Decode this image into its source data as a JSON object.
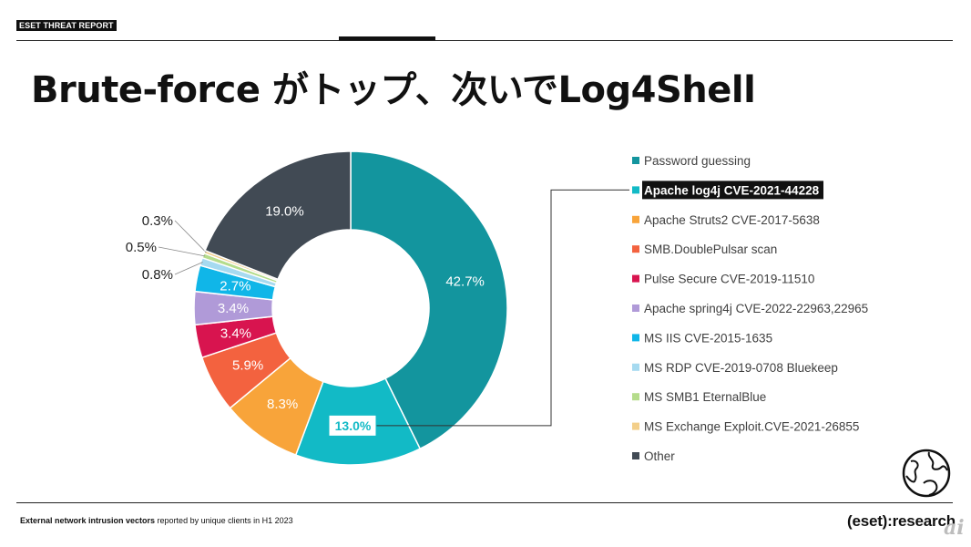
{
  "header": {
    "label": "ESET THREAT REPORT"
  },
  "title": "Brute-force がトップ、次いでLog4Shell",
  "footer": {
    "source_bold": "External network intrusion vectors",
    "source_rest": " reported by unique clients in H1 2023",
    "brand": "(eset):research",
    "watermark": "ai"
  },
  "chart_data": {
    "type": "pie",
    "donut": true,
    "legend_position": "right",
    "highlighted": "Apache log4j CVE-2021-44228",
    "series": [
      {
        "name": "Password guessing",
        "value": 42.7,
        "label": "42.7%",
        "color": "#13959e"
      },
      {
        "name": "Apache log4j CVE-2021-44228",
        "value": 13.0,
        "label": "13.0%",
        "color": "#12bac6"
      },
      {
        "name": "Apache Struts2 CVE-2017-5638",
        "value": 8.3,
        "label": "8.3%",
        "color": "#f8a43a"
      },
      {
        "name": "SMB.DoublePulsar scan",
        "value": 5.9,
        "label": "5.9%",
        "color": "#f3623f"
      },
      {
        "name": "Pulse Secure CVE-2019-11510",
        "value": 3.4,
        "label": "3.4%",
        "color": "#d8144f"
      },
      {
        "name": "Apache spring4j CVE-2022-22963,22965",
        "value": 3.4,
        "label": "3.4%",
        "color": "#b09ad8"
      },
      {
        "name": "MS IIS CVE-2015-1635",
        "value": 2.7,
        "label": "2.7%",
        "color": "#10b6e8"
      },
      {
        "name": "MS RDP CVE-2019-0708 Bluekeep",
        "value": 0.8,
        "label": "0.8%",
        "color": "#a6daf0"
      },
      {
        "name": "MS SMB1 EternalBlue",
        "value": 0.5,
        "label": "0.5%",
        "color": "#b5dc8b"
      },
      {
        "name": "MS Exchange Exploit.CVE-2021-26855",
        "value": 0.3,
        "label": "0.3%",
        "color": "#f3cf8a"
      },
      {
        "name": "Other",
        "value": 19.0,
        "label": "19.0%",
        "color": "#414a54"
      }
    ]
  }
}
